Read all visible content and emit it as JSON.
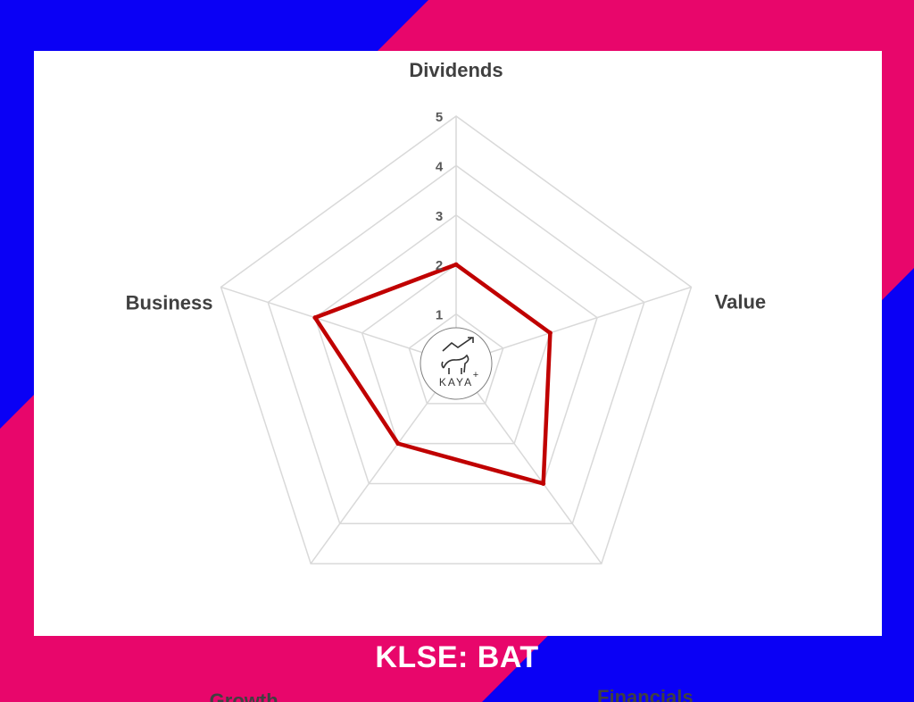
{
  "colors": {
    "blue": "#0a00f5",
    "pink": "#e8066b",
    "series": "#c00000",
    "grid": "#d9d9d9"
  },
  "ticker": "KLSE: BAT",
  "logo": {
    "text": "KAYA",
    "plus": "+",
    "icon": "bull-chart-icon"
  },
  "chart_data": {
    "type": "radar",
    "axes": [
      "Dividends",
      "Value",
      "Financials",
      "Growth",
      "Business"
    ],
    "ticks": [
      1,
      2,
      3,
      4,
      5
    ],
    "range": [
      0,
      5
    ],
    "series": [
      {
        "values": [
          2,
          2,
          3,
          2,
          3
        ]
      }
    ]
  }
}
